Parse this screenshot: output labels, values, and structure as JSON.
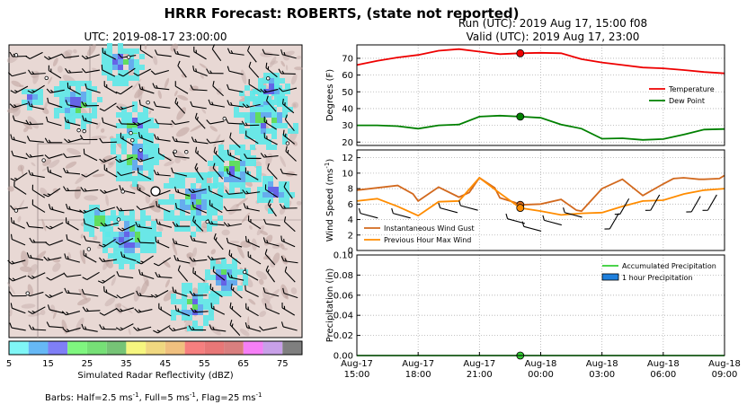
{
  "title": "HRRR Forecast: ROBERTS, (state not reported)",
  "map": {
    "title": "UTC: 2019-08-17 23:00:00",
    "colorbar_label": "Simulated Radar Reflectivity (dBZ)",
    "colorbar_ticks": [
      "5",
      "15",
      "25",
      "35",
      "45",
      "55",
      "65",
      "75"
    ],
    "colorbar_colors": [
      "#7ff6f6",
      "#66b8f5",
      "#7f7ff6",
      "#7ff67f",
      "#76e076",
      "#76c476",
      "#f6f67f",
      "#f0d880",
      "#f0c07f",
      "#f67f7f",
      "#e87777",
      "#d97f7f",
      "#f67ff6",
      "#c8a0e8",
      "#7f7f7f"
    ],
    "barbs_note_prefix": "Barbs: Half=2.5 ms",
    "barbs_note_sup1": "-1",
    "barbs_note_mid1": ", Full=5 ms",
    "barbs_note_sup2": "-1",
    "barbs_note_mid2": ", Flag=25 ms",
    "barbs_note_sup3": "-1"
  },
  "run_title_line1": "Run (UTC): 2019 Aug 17, 15:00 f08",
  "run_title_line2": "Valid (UTC): 2019 Aug 17, 23:00",
  "chart_data": [
    {
      "type": "line",
      "panel": "temperature",
      "ylabel": "Degrees (F)",
      "ylim": [
        18,
        78
      ],
      "yticks": [
        20,
        30,
        40,
        50,
        60,
        70
      ],
      "x_hours": [
        0,
        1,
        2,
        3,
        4,
        5,
        6,
        7,
        8,
        9,
        10,
        11,
        12,
        13,
        14,
        15,
        16,
        17,
        18
      ],
      "valid_hour": 8,
      "legend_position": "center-right",
      "series": [
        {
          "name": "Temperature",
          "color": "#ee0000",
          "values": [
            66,
            68.5,
            70.5,
            72,
            74.5,
            75.5,
            74,
            72.5,
            73,
            73.3,
            73,
            69.5,
            67.5,
            66,
            64.5,
            64,
            63,
            61.8,
            61
          ]
        },
        {
          "name": "Dew Point",
          "color": "#008000",
          "values": [
            30,
            30,
            29.5,
            28,
            30,
            30.5,
            35.2,
            35.8,
            35.2,
            34.5,
            30.5,
            28,
            22,
            22.3,
            21.3,
            21.8,
            24.5,
            27.5,
            27.8
          ]
        }
      ]
    },
    {
      "type": "line",
      "panel": "wind",
      "ylabel": "Wind Speed (ms",
      "ylabel_sup": "-1",
      "ylabel_end": ")",
      "ylim": [
        0,
        13
      ],
      "yticks": [
        0,
        2,
        4,
        6,
        8,
        10,
        12
      ],
      "legend_position": "lower-left",
      "series": [
        {
          "name": "Instantaneous Wind Gust",
          "color": "#d2691e",
          "x": [
            0,
            1,
            2,
            2.75,
            3,
            4,
            5,
            5.5,
            6,
            6.75,
            7,
            7.75,
            8,
            9,
            10,
            10.75,
            11,
            12,
            13,
            14,
            15,
            15.5,
            16,
            16.75,
            17,
            17.75,
            18
          ],
          "values": [
            7.8,
            8.1,
            8.4,
            7.3,
            6.4,
            8.2,
            6.9,
            7.5,
            9.4,
            8.1,
            6.8,
            6.2,
            5.9,
            6,
            6.6,
            5.2,
            5.1,
            8,
            9.2,
            7.1,
            8.6,
            9.3,
            9.4,
            9.2,
            9.2,
            9.3,
            9.7
          ]
        },
        {
          "name": "Previous Hour Max Wind",
          "color": "#ff8c00",
          "x": [
            0,
            1,
            2,
            3,
            4,
            5,
            6,
            7,
            8,
            9,
            10,
            11,
            12,
            13,
            14,
            15,
            16,
            17,
            18
          ],
          "values": [
            6.4,
            6.7,
            5.7,
            4.5,
            6.3,
            6.4,
            9.4,
            7.4,
            5.5,
            5.1,
            4.6,
            4.8,
            4.9,
            5.7,
            6.4,
            6.5,
            7.3,
            7.8,
            8
          ]
        }
      ]
    },
    {
      "type": "line",
      "panel": "precip",
      "ylabel": "Precipitation (in)",
      "ylim": [
        0,
        0.1
      ],
      "yticks": [
        "0.00",
        "0.02",
        "0.04",
        "0.06",
        "0.08",
        "0.10"
      ],
      "legend_position": "top-right",
      "series": [
        {
          "name": "Accumulated Precipitation",
          "color": "#32cd32",
          "values": [
            0,
            0,
            0,
            0,
            0,
            0,
            0,
            0,
            0,
            0,
            0,
            0,
            0,
            0,
            0,
            0,
            0,
            0,
            0
          ]
        },
        {
          "name": "1 hour Precipitation",
          "color": "#1e7fdc",
          "kind": "bar",
          "values": [
            0,
            0,
            0,
            0,
            0,
            0,
            0,
            0,
            0,
            0,
            0,
            0,
            0,
            0,
            0,
            0,
            0,
            0,
            0
          ]
        }
      ]
    }
  ],
  "x_ticks": [
    {
      "hour": 0,
      "line1": "Aug-17",
      "line2": "15:00"
    },
    {
      "hour": 3,
      "line1": "Aug-17",
      "line2": "18:00"
    },
    {
      "hour": 6,
      "line1": "Aug-17",
      "line2": "21:00"
    },
    {
      "hour": 9,
      "line1": "Aug-18",
      "line2": "00:00"
    },
    {
      "hour": 12,
      "line1": "Aug-18",
      "line2": "03:00"
    },
    {
      "hour": 15,
      "line1": "Aug-18",
      "line2": "06:00"
    },
    {
      "hour": 18,
      "line1": "Aug-18",
      "line2": "09:00"
    }
  ]
}
